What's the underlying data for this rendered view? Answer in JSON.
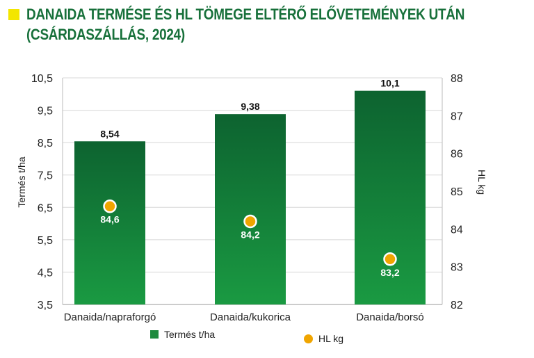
{
  "title": {
    "line1": "DANAIDA TERMÉSE ÉS HL TÖMEGE ELTÉRŐ ELŐVETEMÉNYEK UTÁN",
    "line2": "(CSÁRDASZÁLLÁS, 2024)"
  },
  "colors": {
    "title": "#17703a",
    "title_marker": "#f3e600",
    "bar_top": "#0d6330",
    "bar_bottom": "#1a9a42",
    "hl_marker": "#f0a500",
    "grid": "#d8d8d8"
  },
  "legend": {
    "yield_label": "Termés t/ha",
    "hl_label": "HL kg"
  },
  "chart_data": {
    "type": "bar",
    "categories": [
      "Danaida/napraforgó",
      "Danaida/kukorica",
      "Danaida/borsó"
    ],
    "series": [
      {
        "name": "Termés t/ha",
        "type": "bar",
        "axis": "left",
        "values": [
          8.54,
          9.38,
          10.1
        ],
        "labels": [
          "8,54",
          "9,38",
          "10,1"
        ]
      },
      {
        "name": "HL kg",
        "type": "scatter",
        "axis": "right",
        "values": [
          84.6,
          84.2,
          83.2
        ],
        "labels": [
          "84,6",
          "84,2",
          "83,2"
        ]
      }
    ],
    "ylabel": "Termés t/ha",
    "ylim": [
      3.5,
      10.5
    ],
    "yticks": [
      "3,5",
      "4,5",
      "5,5",
      "6,5",
      "7,5",
      "8,5",
      "9,5",
      "10,5"
    ],
    "ytick_values": [
      3.5,
      4.5,
      5.5,
      6.5,
      7.5,
      8.5,
      9.5,
      10.5
    ],
    "y2label": "HL kg",
    "y2lim": [
      82,
      88
    ],
    "y2ticks": [
      "82",
      "83",
      "84",
      "85",
      "86",
      "87",
      "88"
    ],
    "y2tick_values": [
      82,
      83,
      84,
      85,
      86,
      87,
      88
    ],
    "grid": true,
    "legend_position": "bottom"
  }
}
